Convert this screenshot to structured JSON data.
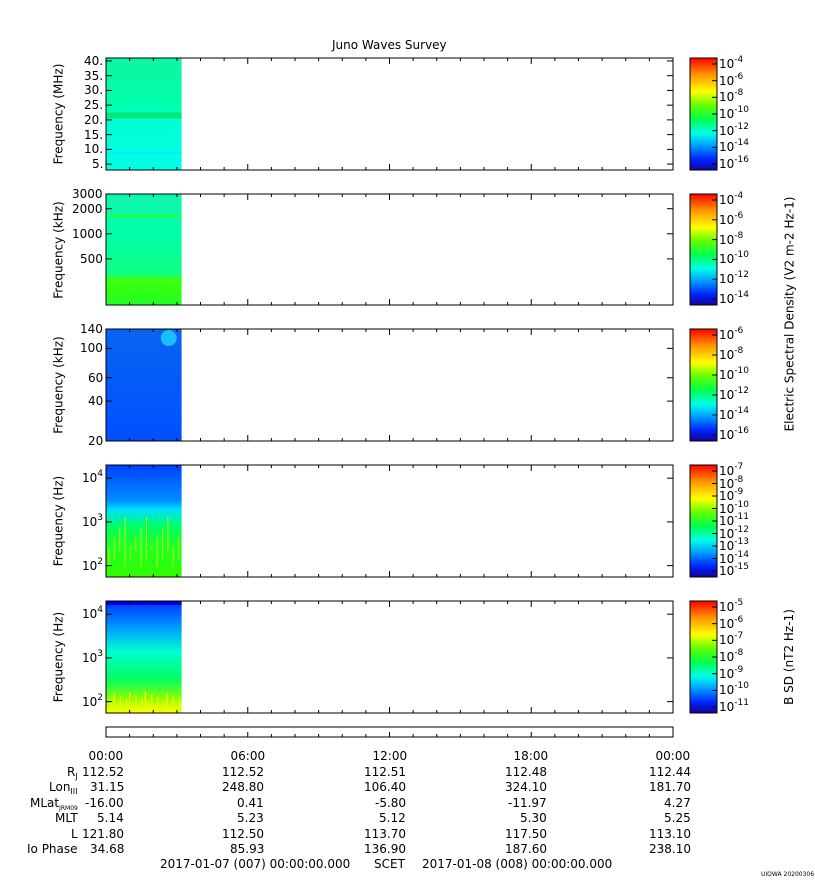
{
  "chart_data": [
    {
      "type": "heatmap",
      "title": "Juno Waves Survey",
      "ylabel": "Frequency (MHz)",
      "yscale": "linear",
      "ylim": [
        3,
        41
      ],
      "yticks": [
        5,
        10,
        15,
        20,
        25,
        30,
        35,
        40
      ],
      "ytick_labels": [
        "5.",
        "10.",
        "15.",
        "20.",
        "25.",
        "30.",
        "35.",
        "40."
      ],
      "colorbar": {
        "label": "",
        "ticks": [
          "10-4",
          "10-6",
          "10-8",
          "10-10",
          "10-12",
          "10-14",
          "10-16"
        ]
      },
      "data_extent_hours": [
        0,
        3.2
      ],
      "band_MHz": 21.5
    },
    {
      "type": "heatmap",
      "ylabel": "Frequency (kHz)",
      "yscale": "log",
      "ylim": [
        140,
        3000
      ],
      "yticks": [
        500,
        1000,
        2000,
        3000
      ],
      "ytick_labels": [
        "500",
        "1000",
        "2000",
        "3000"
      ],
      "colorbar": {
        "label": "Electric Spectral Density (V2 m-2 Hz-1)",
        "ticks": [
          "10-4",
          "10-6",
          "10-8",
          "10-10",
          "10-12",
          "10-14"
        ]
      },
      "data_extent_hours": [
        0,
        3.2
      ],
      "band_kHz": 1650
    },
    {
      "type": "heatmap",
      "ylabel": "Frequency (kHz)",
      "yscale": "log",
      "ylim": [
        20,
        140
      ],
      "yticks": [
        20,
        40,
        60,
        100,
        140
      ],
      "ytick_labels": [
        "20",
        "40",
        "60",
        "100",
        "140"
      ],
      "colorbar": {
        "label": "",
        "ticks": [
          "10-6",
          "10-8",
          "10-10",
          "10-12",
          "10-14",
          "10-16"
        ]
      },
      "data_extent_hours": [
        0,
        3.2
      ]
    },
    {
      "type": "heatmap",
      "ylabel": "Frequency (Hz)",
      "yscale": "log",
      "ylim": [
        55,
        20000
      ],
      "yticks": [
        100,
        1000,
        10000
      ],
      "ytick_labels": [
        "10",
        "10",
        "10"
      ],
      "ytick_exps": [
        "2",
        "3",
        "4"
      ],
      "colorbar": {
        "label": "",
        "ticks": [
          "10-7",
          "10-8",
          "10-9",
          "10-10",
          "10-11",
          "10-12",
          "10-13",
          "10-14",
          "10-15"
        ]
      },
      "data_extent_hours": [
        0,
        3.2
      ]
    },
    {
      "type": "heatmap",
      "ylabel": "Frequency (Hz)",
      "yscale": "log",
      "ylim": [
        55,
        20000
      ],
      "yticks": [
        100,
        1000,
        10000
      ],
      "ytick_labels": [
        "10",
        "10",
        "10"
      ],
      "ytick_exps": [
        "2",
        "3",
        "4"
      ],
      "colorbar": {
        "label": "B SD (nT2 Hz-1)",
        "ticks": [
          "10-5",
          "10-6",
          "10-7",
          "10-8",
          "10-9",
          "10-10",
          "10-11"
        ]
      },
      "data_extent_hours": [
        0,
        3.2
      ]
    }
  ],
  "time_axis": {
    "xlim_hours": [
      0,
      24
    ],
    "tick_labels": [
      "00:00",
      "06:00",
      "12:00",
      "18:00",
      "00:00"
    ]
  },
  "ephemeris": [
    {
      "label": "R",
      "sub": "J",
      "values": [
        "112.52",
        "112.52",
        "112.51",
        "112.48",
        "112.44"
      ]
    },
    {
      "label": "Lon",
      "sub": "III",
      "values": [
        "31.15",
        "248.80",
        "106.40",
        "324.10",
        "181.70"
      ]
    },
    {
      "label": "MLat",
      "sub": "JRM09",
      "values": [
        "-16.00",
        "0.41",
        "-5.80",
        "-11.97",
        "4.27"
      ]
    },
    {
      "label": "MLT",
      "sub": "",
      "values": [
        "5.14",
        "5.23",
        "5.12",
        "5.30",
        "5.25"
      ]
    },
    {
      "label": "L",
      "sub": "",
      "values": [
        "121.80",
        "112.50",
        "113.70",
        "117.50",
        "113.10"
      ]
    },
    {
      "label": "Io Phase",
      "sub": "",
      "values": [
        "34.68",
        "85.93",
        "136.90",
        "187.60",
        "238.10"
      ]
    }
  ],
  "footer": {
    "start": "2017-01-07 (007) 00:00:00.000",
    "scet": "SCET",
    "end": "2017-01-08 (008) 00:00:00.000"
  },
  "stamp": "UIOWA 20200306"
}
